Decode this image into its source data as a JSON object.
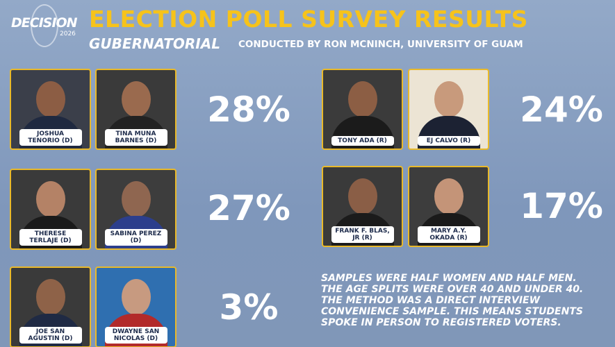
{
  "header": {
    "logo": "DECISION",
    "logo_year": "2026",
    "title": "ELECTION POLL SURVEY RESULTS",
    "subtitle": "GUBERNATORIAL",
    "credit": "CONDUCTED BY RON MCNINCH, UNIVERSITY OF GUAM"
  },
  "tickets": [
    {
      "candidates": [
        "JOSHUA TENORIO (D)",
        "TINA MUNA BARNES (D)"
      ],
      "percent": "28%"
    },
    {
      "candidates": [
        "THERESE TERLAJE (D)",
        "SABINA PEREZ (D)"
      ],
      "percent": "27%"
    },
    {
      "candidates": [
        "JOE SAN AGUSTIN (D)",
        "DWAYNE SAN NICOLAS (D)"
      ],
      "percent": "3%"
    },
    {
      "candidates": [
        "TONY ADA (R)",
        "EJ CALVO (R)"
      ],
      "percent": "24%"
    },
    {
      "candidates": [
        "FRANK F. BLAS, JR (R)",
        "MARY A.Y. OKADA (R)"
      ],
      "percent": "17%"
    }
  ],
  "note": [
    "SAMPLES WERE HALF WOMEN AND HALF MEN.",
    "THE AGE SPLITS WERE OVER 40 AND UNDER 40.",
    "THE METHOD WAS A DIRECT INTERVIEW",
    "CONVENIENCE SAMPLE. THIS MEANS STUDENTS",
    "SPOKE IN PERSON TO REGISTERED VOTERS."
  ]
}
